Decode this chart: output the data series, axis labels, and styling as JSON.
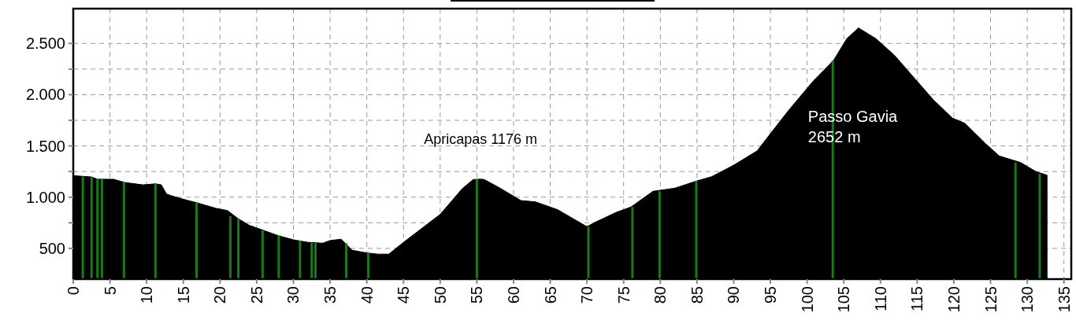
{
  "chart_data": {
    "type": "area",
    "x": [
      0,
      2.5,
      3.3,
      5.5,
      7,
      9.5,
      11.2,
      12,
      12.7,
      13.4,
      15,
      17,
      19.5,
      21,
      22.5,
      24,
      26,
      28,
      30,
      32,
      34,
      35,
      36.5,
      38,
      40,
      41.5,
      43,
      45,
      50,
      53,
      54.5,
      55.5,
      56,
      58,
      61,
      63,
      66,
      70,
      71,
      74,
      76,
      79,
      82,
      85,
      87,
      90,
      93.2,
      95,
      97.5,
      100.8,
      103.6,
      105.4,
      107,
      109.4,
      111.9,
      114.7,
      117.2,
      119.8,
      121.5,
      124.4,
      126.2,
      129.1,
      131.2,
      132.7
    ],
    "series": [
      {
        "color": "#000000",
        "values": [
          1210,
          1197,
          1175,
          1175,
          1143,
          1120,
          1130,
          1120,
          1031,
          1013,
          980,
          942,
          890,
          870,
          789,
          725,
          674,
          623,
          584,
          559,
          551,
          577,
          590,
          482,
          456,
          444,
          444,
          559,
          832,
          1082,
          1172,
          1176,
          1172,
          1095,
          967,
          954,
          878,
          712,
          751,
          852,
          904,
          1057,
          1088,
          1159,
          1200,
          1312,
          1452,
          1619,
          1849,
          2130,
          2334,
          2546,
          2652,
          2546,
          2385,
          2155,
          1951,
          1772,
          1721,
          1517,
          1402,
          1338,
          1249,
          1215
        ]
      },
      {
        "type": "bar",
        "color": "#1a7a1a",
        "x": [
          1.3,
          2.5,
          3.3,
          3.9,
          6.9,
          11.2,
          16.8,
          21.4,
          22.5,
          25.8,
          28,
          30.9,
          32.5,
          33,
          37.2,
          40.2,
          55,
          70.2,
          76.2,
          79.9,
          84.9,
          103.5,
          128.4,
          131.7
        ],
        "values": [
          1200,
          1195,
          1175,
          1175,
          1145,
          1130,
          945,
          815,
          790,
          675,
          623,
          575,
          555,
          555,
          550,
          455,
          1176,
          712,
          904,
          1057,
          1159,
          2334,
          1338,
          1230
        ]
      }
    ],
    "xlim": [
      0,
      136
    ],
    "xticks": [
      0,
      5,
      10,
      15,
      20,
      25,
      30,
      35,
      40,
      45,
      50,
      55,
      60,
      65,
      70,
      75,
      80,
      85,
      90,
      95,
      100,
      105,
      110,
      115,
      120,
      125,
      130,
      135
    ],
    "ylim": [
      200,
      2840
    ],
    "yticks": [
      500,
      {
        "value": 750,
        "label": null
      },
      {
        "value": 1000,
        "label": "1.000"
      },
      {
        "value": 1250,
        "label": null
      },
      {
        "value": 1500,
        "label": "1.500"
      },
      {
        "value": 1750,
        "label": null
      },
      {
        "value": 2000,
        "label": "2.000"
      },
      {
        "value": 2250,
        "label": null
      },
      {
        "value": 2500,
        "label": "2.500"
      }
    ],
    "grid": true,
    "annotations": [
      {
        "text": "Apricapas 1176 m",
        "x": 55.5,
        "y": 1176
      },
      "Passo Gavia\n2652 m"
    ]
  }
}
